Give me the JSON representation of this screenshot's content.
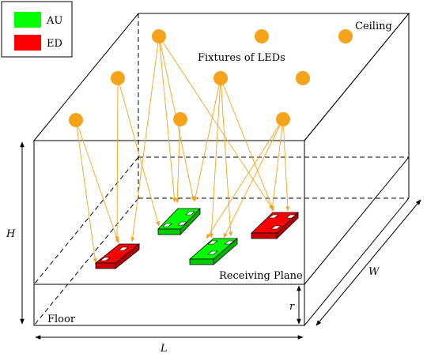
{
  "legend": {
    "items": [
      {
        "label": "AU",
        "color": "#00ff00"
      },
      {
        "label": "ED",
        "color": "#ff0000"
      }
    ]
  },
  "labels": {
    "ceiling": "Ceiling",
    "fixtures": "Fixtures of LEDs",
    "receiving_plane": "Receiving Plane",
    "floor": "Floor"
  },
  "dimensions": {
    "height": "H",
    "width": "W",
    "length": "L",
    "offset": "r"
  },
  "colors": {
    "led": "#f5a31a",
    "ray": "#f5a31a",
    "au": "#00ff00",
    "ed": "#ff0000",
    "edge": "#000000"
  }
}
